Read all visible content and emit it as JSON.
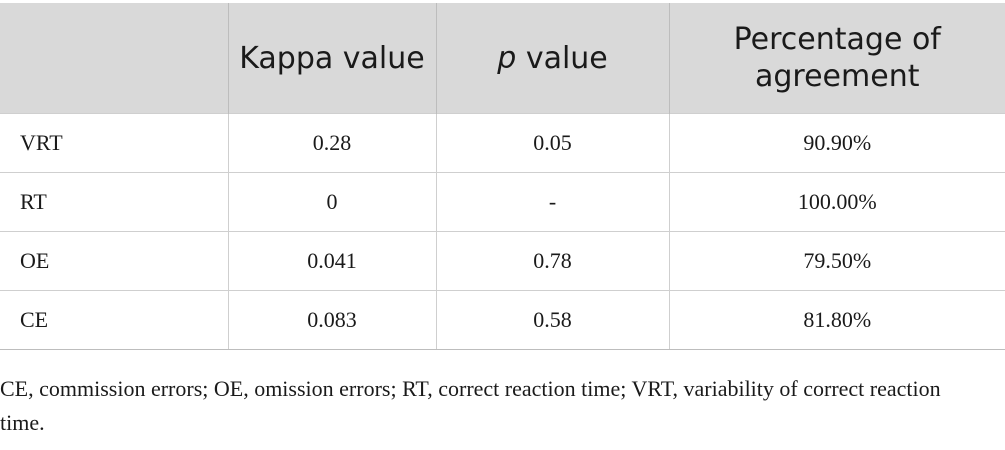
{
  "table": {
    "headers": {
      "col0": "",
      "col1": "Kappa value",
      "col2_italic": "p",
      "col2_rest": " value",
      "col3": "Percentage of agreement"
    },
    "rows": [
      {
        "label": "VRT",
        "kappa": "0.28",
        "p": "0.05",
        "agreement": "90.90%"
      },
      {
        "label": "RT",
        "kappa": "0",
        "p": "-",
        "agreement": "100.00%"
      },
      {
        "label": "OE",
        "kappa": "0.041",
        "p": "0.78",
        "agreement": "79.50%"
      },
      {
        "label": "CE",
        "kappa": "0.083",
        "p": "0.58",
        "agreement": "81.80%"
      }
    ]
  },
  "footnote": "CE, commission errors; OE, omission errors; RT, correct reaction time; VRT, variability of correct reaction time.",
  "colors": {
    "header_bg": "#d9d9d9",
    "text": "#1a1a1a",
    "grid": "#cfcfcf"
  }
}
